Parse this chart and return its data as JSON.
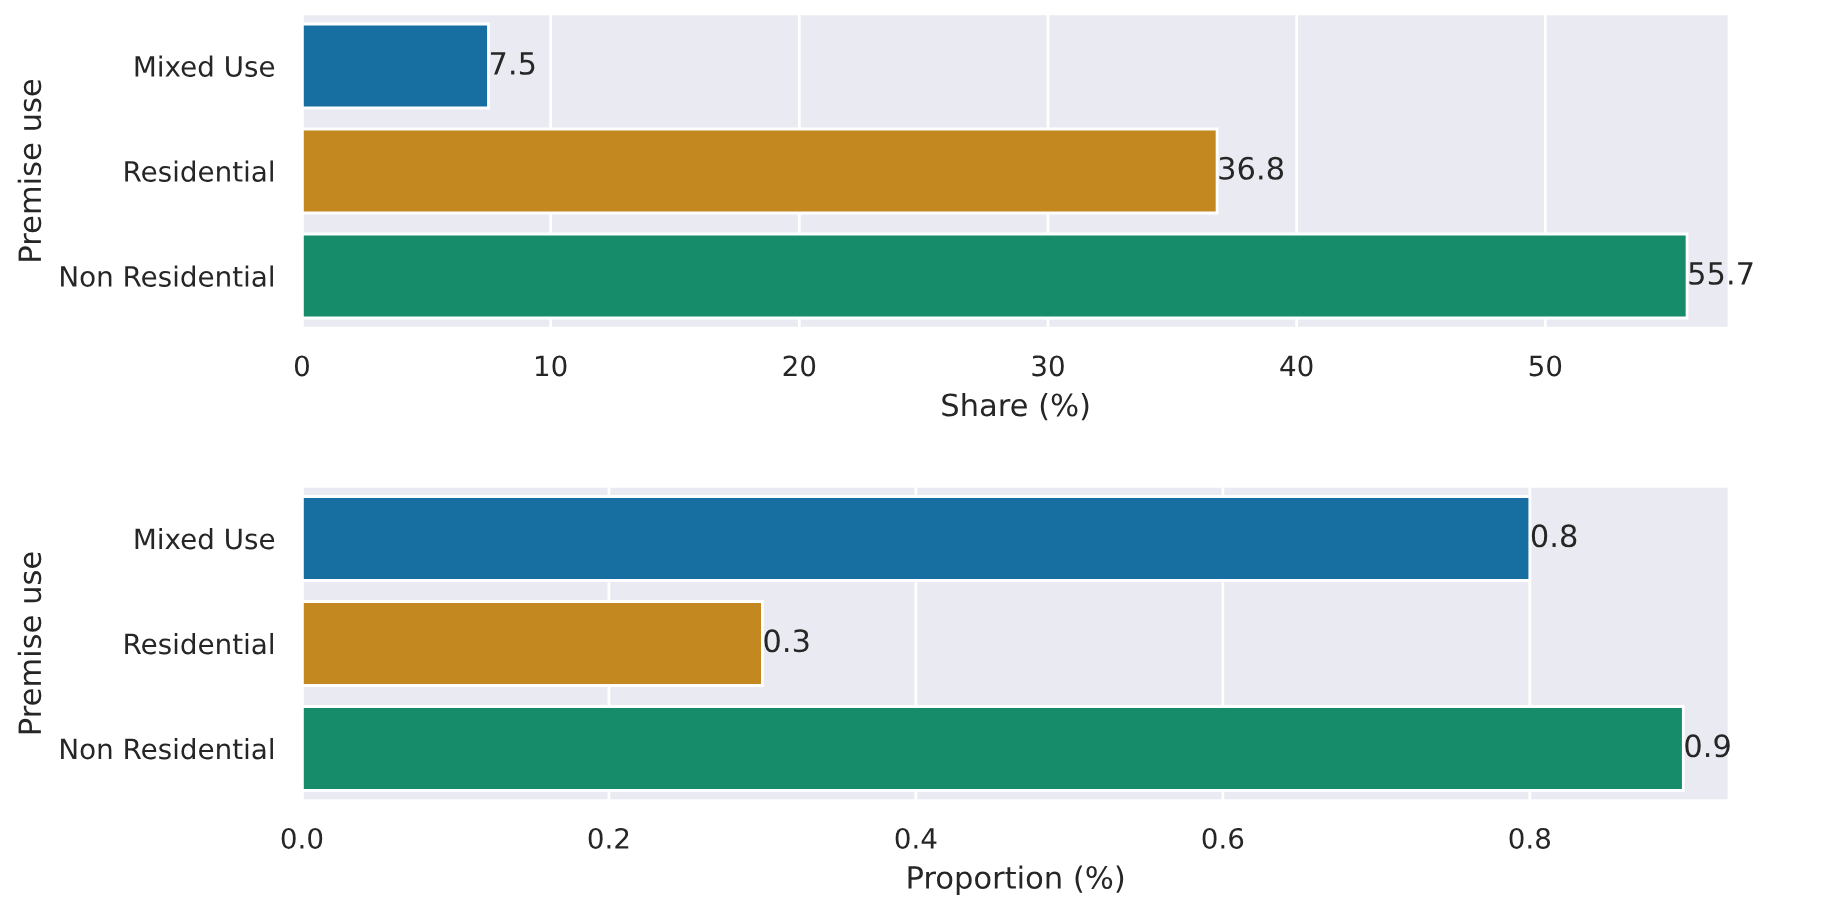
{
  "chart_data": [
    {
      "type": "bar",
      "orientation": "horizontal",
      "categories": [
        "Mixed Use",
        "Residential",
        "Non Residential"
      ],
      "values": [
        7.5,
        36.8,
        55.7
      ],
      "colors": [
        "#176fa1",
        "#c38820",
        "#168c6b"
      ],
      "xlabel": "Share (%)",
      "ylabel": "Premise use",
      "xlim": [
        0,
        57.4
      ],
      "xticks": [
        0,
        10,
        20,
        30,
        40,
        50
      ],
      "grid": "x",
      "data_labels": true
    },
    {
      "type": "bar",
      "orientation": "horizontal",
      "categories": [
        "Mixed Use",
        "Residential",
        "Non Residential"
      ],
      "values": [
        0.8,
        0.3,
        0.9
      ],
      "colors": [
        "#176fa1",
        "#c38820",
        "#168c6b"
      ],
      "xlabel": "Proportion (%)",
      "ylabel": "Premise use",
      "xlim": [
        0,
        0.93
      ],
      "xticks": [
        {
          "value": 0,
          "label": "0.0"
        },
        0.2,
        0.4,
        0.6,
        0.8
      ],
      "grid": "x",
      "data_labels": true
    }
  ]
}
